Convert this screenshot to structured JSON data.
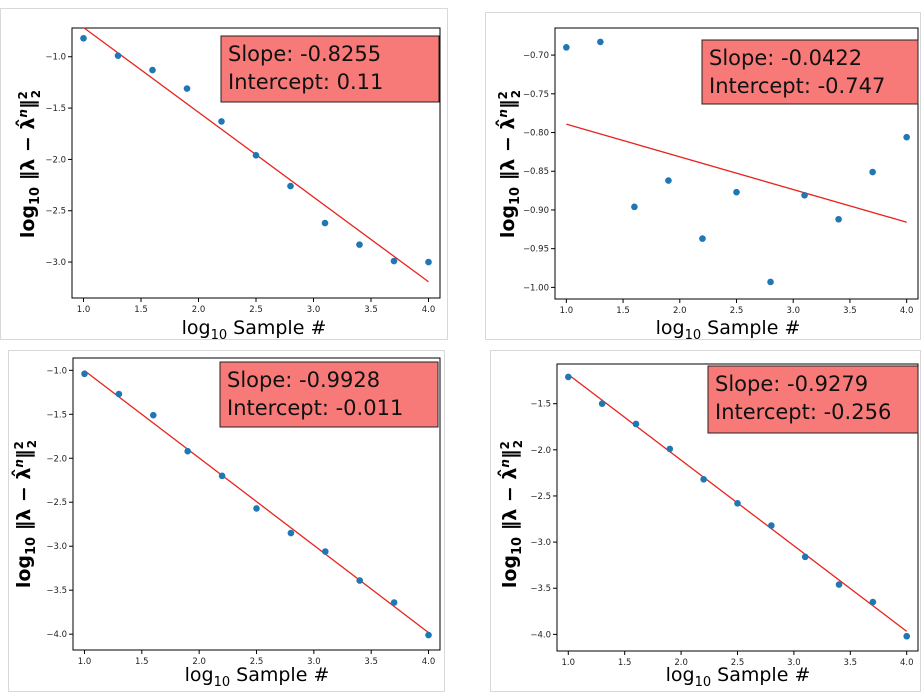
{
  "annotation_color": "#f77a78",
  "point_color": "#1f77b4",
  "line_color": "#e8231d",
  "chart_data": [
    {
      "type": "scatter",
      "xlabel": "log10 Sample #",
      "ylabel": "log10 ||λ − λ̂^n||_2^2",
      "xlim": [
        0.9,
        4.1
      ],
      "ylim": [
        -3.35,
        -0.72
      ],
      "xticks": [
        1.0,
        1.5,
        2.0,
        2.5,
        3.0,
        3.5,
        4.0
      ],
      "xtick_labels": [
        "1.0",
        "1.5",
        "2.0",
        "2.5",
        "3.0",
        "3.5",
        "4.0"
      ],
      "yticks": [
        -1.0,
        -1.5,
        -2.0,
        -2.5,
        -3.0
      ],
      "ytick_labels": [
        "−1.0",
        "−1.5",
        "−2.0",
        "−2.5",
        "−3.0"
      ],
      "x": [
        1.0,
        1.3,
        1.6,
        1.9,
        2.2,
        2.5,
        2.8,
        3.1,
        3.4,
        3.7,
        4.0
      ],
      "y": [
        -0.82,
        -0.99,
        -1.13,
        -1.31,
        -1.63,
        -1.96,
        -2.26,
        -2.62,
        -2.83,
        -2.99,
        -3.0
      ],
      "fit": {
        "slope": -0.8255,
        "intercept": 0.11
      },
      "annotation": [
        "Slope: -0.8255",
        "Intercept: 0.11"
      ]
    },
    {
      "type": "scatter",
      "xlabel": "log10 Sample #",
      "ylabel": "log10 ||λ − λ̂^n||_2^2",
      "xlim": [
        0.9,
        4.1
      ],
      "ylim": [
        -1.015,
        -0.665
      ],
      "xticks": [
        1.0,
        1.5,
        2.0,
        2.5,
        3.0,
        3.5,
        4.0
      ],
      "xtick_labels": [
        "1.0",
        "1.5",
        "2.0",
        "2.5",
        "3.0",
        "3.5",
        "4.0"
      ],
      "yticks": [
        -0.7,
        -0.75,
        -0.8,
        -0.85,
        -0.9,
        -0.95,
        -1.0
      ],
      "ytick_labels": [
        "−0.70",
        "−0.75",
        "−0.80",
        "−0.85",
        "−0.90",
        "−0.95",
        "−1.00"
      ],
      "x": [
        1.0,
        1.3,
        1.6,
        1.9,
        2.2,
        2.5,
        2.8,
        3.1,
        3.4,
        3.7,
        4.0
      ],
      "y": [
        -0.69,
        -0.683,
        -0.896,
        -0.862,
        -0.937,
        -0.877,
        -0.993,
        -0.881,
        -0.912,
        -0.851,
        -0.806
      ],
      "fit": {
        "slope": -0.0422,
        "intercept": -0.747
      },
      "annotation": [
        "Slope: -0.0422",
        "Intercept: -0.747"
      ]
    },
    {
      "type": "scatter",
      "xlabel": "log10 Sample #",
      "ylabel": "log10 ||λ − λ̂^n||_2^2",
      "xlim": [
        0.9,
        4.1
      ],
      "ylim": [
        -4.18,
        -0.86
      ],
      "xticks": [
        1.0,
        1.5,
        2.0,
        2.5,
        3.0,
        3.5,
        4.0
      ],
      "xtick_labels": [
        "1.0",
        "1.5",
        "2.0",
        "2.5",
        "3.0",
        "3.5",
        "4.0"
      ],
      "yticks": [
        -1.0,
        -1.5,
        -2.0,
        -2.5,
        -3.0,
        -3.5,
        -4.0
      ],
      "ytick_labels": [
        "−1.0",
        "−1.5",
        "−2.0",
        "−2.5",
        "−3.0",
        "−3.5",
        "−4.0"
      ],
      "x": [
        1.0,
        1.3,
        1.6,
        1.9,
        2.2,
        2.5,
        2.8,
        3.1,
        3.4,
        3.7,
        4.0
      ],
      "y": [
        -1.04,
        -1.27,
        -1.51,
        -1.92,
        -2.2,
        -2.57,
        -2.85,
        -3.06,
        -3.39,
        -3.64,
        -4.01
      ],
      "fit": {
        "slope": -0.9928,
        "intercept": -0.011
      },
      "annotation": [
        "Slope: -0.9928",
        "Intercept: -0.011"
      ]
    },
    {
      "type": "scatter",
      "xlabel": "log10 Sample #",
      "ylabel": "log10 ||λ − λ̂^n||_2^2",
      "xlim": [
        0.9,
        4.1
      ],
      "ylim": [
        -4.18,
        -1.07
      ],
      "xticks": [
        1.0,
        1.5,
        2.0,
        2.5,
        3.0,
        3.5,
        4.0
      ],
      "xtick_labels": [
        "1.0",
        "1.5",
        "2.0",
        "2.5",
        "3.0",
        "3.5",
        "4.0"
      ],
      "yticks": [
        -1.5,
        -2.0,
        -2.5,
        -3.0,
        -3.5,
        -4.0
      ],
      "ytick_labels": [
        "−1.5",
        "−2.0",
        "−2.5",
        "−3.0",
        "−3.5",
        "−4.0"
      ],
      "x": [
        1.0,
        1.3,
        1.6,
        1.9,
        2.2,
        2.5,
        2.8,
        3.1,
        3.4,
        3.7,
        4.0
      ],
      "y": [
        -1.21,
        -1.5,
        -1.72,
        -1.99,
        -2.32,
        -2.58,
        -2.82,
        -3.16,
        -3.46,
        -3.65,
        -4.02
      ],
      "fit": {
        "slope": -0.9279,
        "intercept": -0.256
      },
      "annotation": [
        "Slope: -0.9279",
        "Intercept: -0.256"
      ]
    }
  ]
}
